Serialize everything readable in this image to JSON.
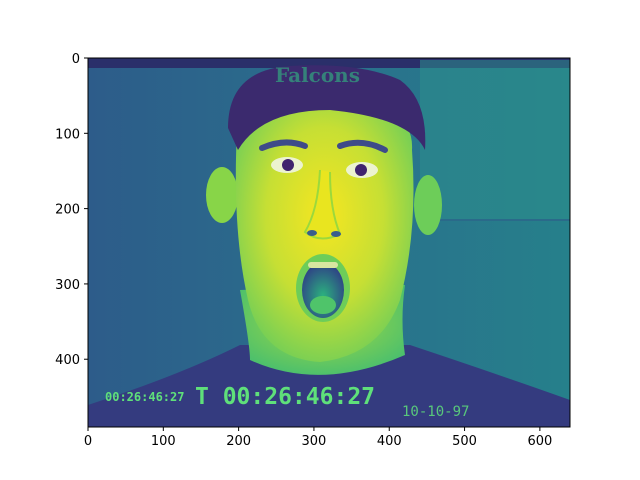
{
  "axes": {
    "xlim": [
      0,
      640
    ],
    "ylim": [
      0,
      490
    ],
    "y_inverted": true,
    "x_ticks": [
      "0",
      "100",
      "200",
      "300",
      "400",
      "500",
      "600"
    ],
    "y_ticks": [
      "0",
      "100",
      "200",
      "300",
      "400"
    ],
    "grid": false
  },
  "image": {
    "colormap": "viridis",
    "subject": "face-with-open-mouth",
    "hat_text": "Falcons",
    "overlay_small_timecode": "00:26:46:27",
    "overlay_timecode": "T 00:26:46:27",
    "overlay_date": "10-10-97"
  },
  "colors": {
    "background_dark": "#30588c",
    "background_mid": "#2a7a8a",
    "face_bright": "#fde725",
    "face_green": "#8fd744",
    "hat_dark": "#3b2a6e",
    "shirt": "#343b7f",
    "osd_text": "#5fe07a"
  }
}
